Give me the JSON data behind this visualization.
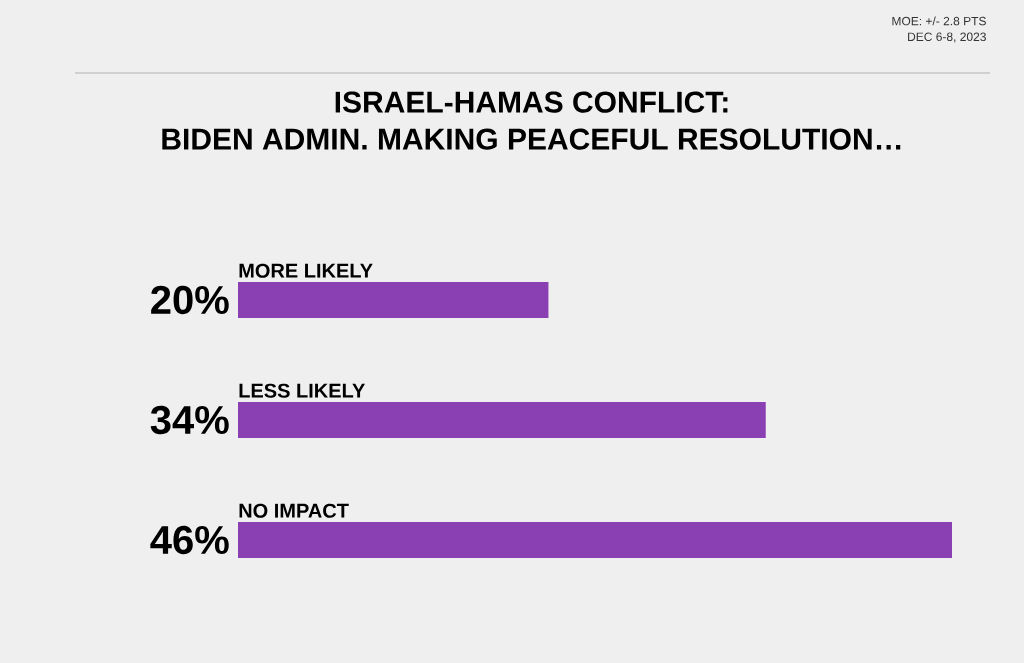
{
  "chart_data": {
    "type": "bar",
    "orientation": "horizontal",
    "title": "ISRAEL-HAMAS CONFLICT:",
    "subtitle": "BIDEN ADMIN. MAKING PEACEFUL RESOLUTION…",
    "categories": [
      "MORE LIKELY",
      "LESS LIKELY",
      "NO IMPACT"
    ],
    "values": [
      20,
      34,
      46
    ],
    "value_labels": [
      "20%",
      "34%",
      "46%"
    ],
    "color": "#8a3fb3",
    "annotations": [
      "MOE: +/- 2.8 PTS",
      "DEC 6-8, 2023"
    ]
  }
}
